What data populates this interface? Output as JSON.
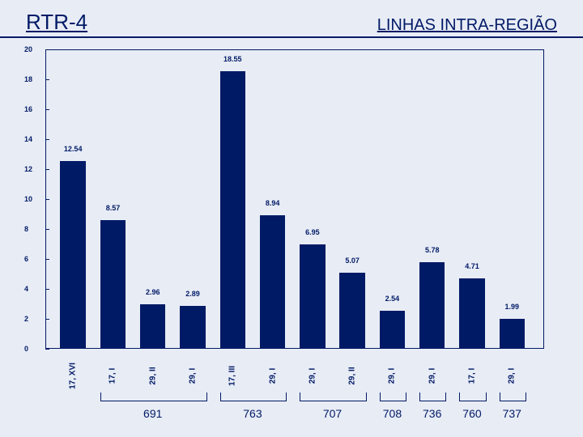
{
  "header": {
    "left": "RTR-4",
    "right": "LINHAS INTRA-REGIÃO"
  },
  "chart": {
    "type": "bar",
    "ylim": [
      0,
      20
    ],
    "ytick_step": 2,
    "bg": "#e8ecf5",
    "axis_color": "#001a66",
    "bar_color": "#001a66",
    "text_color": "#001a66",
    "font_size_labels": 9,
    "font_size_ticks": 9,
    "bar_width_pct": 5.1,
    "gap_pct": 2.9,
    "left_pad_pct": 3.0,
    "bars": [
      {
        "cat": "17, XVI",
        "val": 12.54,
        "label": "12.54"
      },
      {
        "cat": "17, I",
        "val": 8.57,
        "label": "8.57"
      },
      {
        "cat": "29, II",
        "val": 2.96,
        "label": "2.96"
      },
      {
        "cat": "29, I",
        "val": 2.89,
        "label": "2.89"
      },
      {
        "cat": "17, III",
        "val": 18.55,
        "label": "18.55"
      },
      {
        "cat": "29, I",
        "val": 8.94,
        "label": "8.94"
      },
      {
        "cat": "29, I",
        "val": 6.95,
        "label": "6.95"
      },
      {
        "cat": "29, II",
        "val": 5.07,
        "label": "5.07"
      },
      {
        "cat": "29, I",
        "val": 2.54,
        "label": "2.54"
      },
      {
        "cat": "29, I",
        "val": 5.78,
        "label": "5.78"
      },
      {
        "cat": "17, I",
        "val": 4.71,
        "label": "4.71"
      },
      {
        "cat": "29, I",
        "val": 1.99,
        "label": "1.99"
      }
    ],
    "groups": [
      {
        "from": 1,
        "to": 3,
        "label": "691"
      },
      {
        "from": 4,
        "to": 5,
        "label": "763"
      },
      {
        "from": 6,
        "to": 7,
        "label": "707"
      },
      {
        "from": 8,
        "to": 8,
        "label": "708"
      },
      {
        "from": 9,
        "to": 9,
        "label": "736"
      },
      {
        "from": 10,
        "to": 10,
        "label": "760"
      },
      {
        "from": 11,
        "to": 11,
        "label": "737"
      }
    ]
  }
}
